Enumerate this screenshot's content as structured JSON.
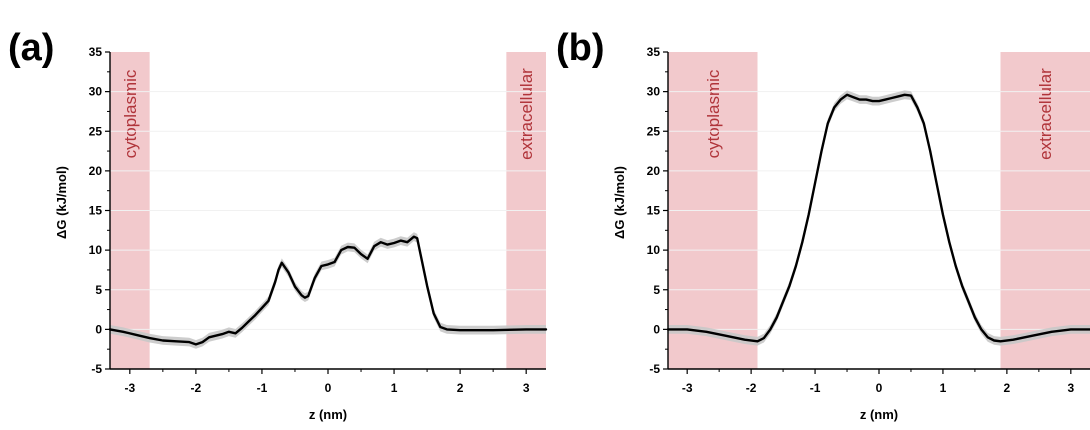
{
  "chart_data": [
    {
      "type": "line",
      "panel_label": "(a)",
      "xlabel": "z (nm)",
      "ylabel": "ΔG (kJ/mol)",
      "xlim": [
        -3.3,
        3.3
      ],
      "ylim": [
        -5,
        35
      ],
      "xticks": [
        -3,
        -2,
        -1,
        0,
        1,
        2,
        3
      ],
      "yticks": [
        -5,
        0,
        5,
        10,
        15,
        20,
        25,
        30,
        35
      ],
      "grid": true,
      "regions": [
        {
          "label": "cytoplasmic",
          "x_range": [
            -3.3,
            -2.7
          ]
        },
        {
          "label": "extracellular",
          "x_range": [
            2.7,
            3.3
          ]
        }
      ],
      "series": [
        {
          "x": [
            -3.3,
            -3.1,
            -2.9,
            -2.7,
            -2.5,
            -2.3,
            -2.1,
            -2.0,
            -1.9,
            -1.8,
            -1.6,
            -1.5,
            -1.4,
            -1.3,
            -1.2,
            -1.1,
            -1.0,
            -0.9,
            -0.8,
            -0.75,
            -0.7,
            -0.6,
            -0.5,
            -0.4,
            -0.35,
            -0.3,
            -0.2,
            -0.1,
            0.0,
            0.1,
            0.2,
            0.3,
            0.4,
            0.5,
            0.6,
            0.7,
            0.8,
            0.9,
            1.0,
            1.1,
            1.2,
            1.3,
            1.35,
            1.4,
            1.5,
            1.6,
            1.7,
            1.8,
            2.0,
            2.5,
            3.0,
            3.3
          ],
          "values": [
            0.0,
            -0.3,
            -0.7,
            -1.1,
            -1.4,
            -1.5,
            -1.6,
            -1.9,
            -1.6,
            -1.0,
            -0.6,
            -0.3,
            -0.5,
            0.2,
            1.0,
            1.8,
            2.7,
            3.6,
            6.0,
            7.5,
            8.4,
            7.2,
            5.4,
            4.3,
            4.0,
            4.2,
            6.5,
            8.0,
            8.2,
            8.5,
            10.0,
            10.4,
            10.3,
            9.5,
            8.9,
            10.5,
            11.0,
            10.7,
            10.9,
            11.2,
            11.0,
            11.7,
            11.5,
            9.5,
            5.5,
            2.0,
            0.3,
            0.0,
            -0.1,
            -0.1,
            0.0,
            0.0
          ],
          "color": "#000000",
          "error_band_color": "#c8c8c8"
        }
      ],
      "region_color": "#f2c9cc"
    },
    {
      "type": "line",
      "panel_label": "(b)",
      "xlabel": "z (nm)",
      "ylabel": "ΔG (kJ/mol)",
      "xlim": [
        -3.3,
        3.3
      ],
      "ylim": [
        -5,
        35
      ],
      "xticks": [
        -3,
        -2,
        -1,
        0,
        1,
        2,
        3
      ],
      "yticks": [
        -5,
        0,
        5,
        10,
        15,
        20,
        25,
        30,
        35
      ],
      "grid": true,
      "regions": [
        {
          "label": "cytoplasmic",
          "x_range": [
            -3.3,
            -1.9
          ]
        },
        {
          "label": "extracellular",
          "x_range": [
            1.9,
            3.3
          ]
        }
      ],
      "series": [
        {
          "x": [
            -3.3,
            -3.0,
            -2.7,
            -2.4,
            -2.1,
            -1.9,
            -1.8,
            -1.7,
            -1.6,
            -1.5,
            -1.4,
            -1.3,
            -1.2,
            -1.1,
            -1.0,
            -0.9,
            -0.8,
            -0.7,
            -0.6,
            -0.5,
            -0.4,
            -0.3,
            -0.2,
            -0.1,
            0.0,
            0.1,
            0.2,
            0.3,
            0.4,
            0.5,
            0.6,
            0.7,
            0.8,
            0.9,
            1.0,
            1.1,
            1.2,
            1.3,
            1.4,
            1.5,
            1.6,
            1.7,
            1.8,
            1.9,
            2.1,
            2.4,
            2.7,
            3.0,
            3.3
          ],
          "values": [
            0.0,
            0.0,
            -0.3,
            -0.8,
            -1.3,
            -1.5,
            -1.1,
            0.0,
            1.5,
            3.5,
            5.5,
            8.0,
            11.0,
            14.5,
            18.5,
            22.5,
            26.0,
            28.0,
            29.0,
            29.6,
            29.3,
            29.0,
            29.0,
            28.8,
            28.8,
            29.0,
            29.2,
            29.4,
            29.6,
            29.5,
            28.0,
            26.0,
            22.5,
            18.5,
            14.5,
            11.0,
            8.0,
            5.5,
            3.5,
            1.5,
            0.0,
            -1.0,
            -1.4,
            -1.5,
            -1.3,
            -0.8,
            -0.3,
            0.0,
            0.0
          ],
          "color": "#000000",
          "error_band_color": "#c8c8c8"
        }
      ],
      "region_color": "#f2c9cc"
    }
  ]
}
